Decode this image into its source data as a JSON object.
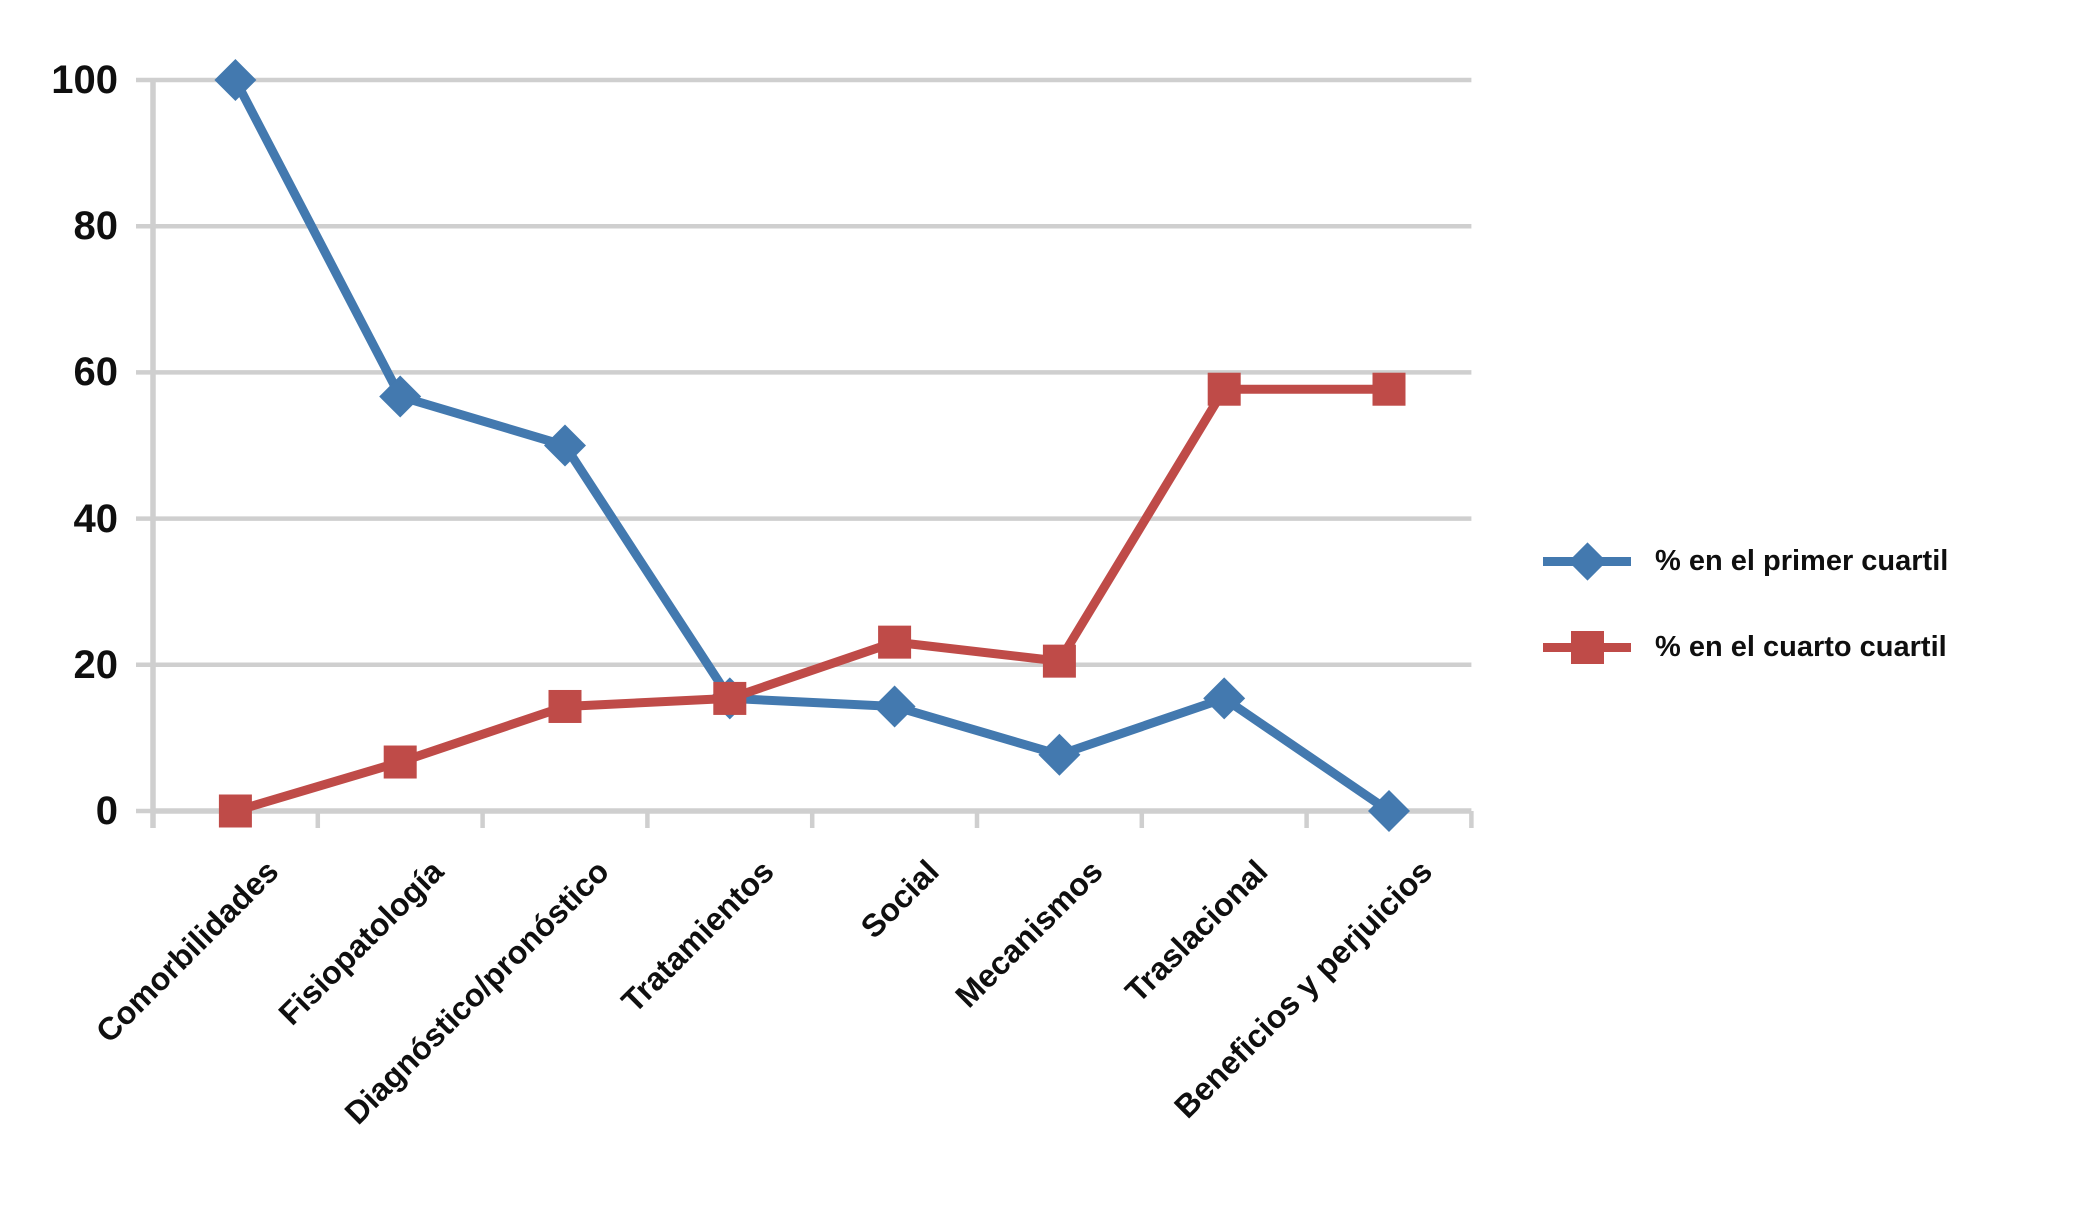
{
  "chart_data": {
    "type": "line",
    "title": "",
    "xlabel": "",
    "ylabel": "",
    "categories": [
      "Comorbilidades",
      "Fisiopatología",
      "Diagnóstico/pronóstico",
      "Tratamientos",
      "Social",
      "Mecanismos",
      "Traslacional",
      "Beneficios y perjuicios"
    ],
    "series": [
      {
        "name": "% en el primer cuartil",
        "marker": "diamond",
        "color": "#4379AF",
        "values": [
          100,
          56.7,
          50,
          15.4,
          14.3,
          7.7,
          15.4,
          0
        ]
      },
      {
        "name": "% en el cuarto cuartil",
        "marker": "square",
        "color": "#BF4B48",
        "values": [
          0,
          6.7,
          14.3,
          15.4,
          23.1,
          20.5,
          57.7,
          57.7
        ]
      }
    ],
    "y_ticks": [
      "0",
      "20",
      "40",
      "60",
      "80",
      "100"
    ],
    "ylim": [
      0,
      100
    ],
    "grid": true,
    "grid_color": "#CFCFCF",
    "legend_position": "right-center"
  }
}
